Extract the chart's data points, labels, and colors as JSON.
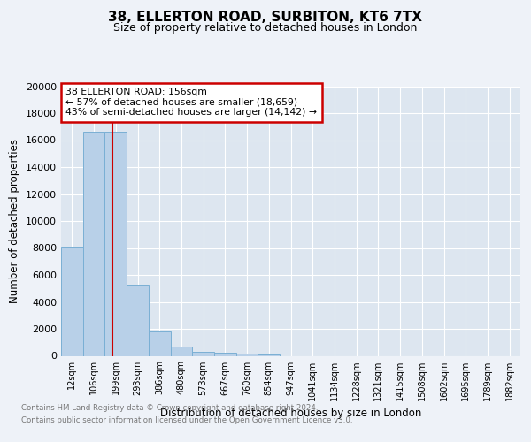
{
  "title": "38, ELLERTON ROAD, SURBITON, KT6 7TX",
  "subtitle": "Size of property relative to detached houses in London",
  "xlabel": "Distribution of detached houses by size in London",
  "ylabel": "Number of detached properties",
  "categories": [
    "12sqm",
    "106sqm",
    "199sqm",
    "293sqm",
    "386sqm",
    "480sqm",
    "573sqm",
    "667sqm",
    "760sqm",
    "854sqm",
    "947sqm",
    "1041sqm",
    "1134sqm",
    "1228sqm",
    "1321sqm",
    "1415sqm",
    "1508sqm",
    "1602sqm",
    "1695sqm",
    "1789sqm",
    "1882sqm"
  ],
  "values": [
    8100,
    16600,
    16600,
    5300,
    1800,
    700,
    300,
    200,
    150,
    100,
    0,
    0,
    0,
    0,
    0,
    0,
    0,
    0,
    0,
    0,
    0
  ],
  "bar_color": "#b8d0e8",
  "bar_edge_color": "#7aafd4",
  "vline_x": 1.85,
  "vline_color": "#cc0000",
  "annotation_title": "38 ELLERTON ROAD: 156sqm",
  "annotation_line1": "← 57% of detached houses are smaller (18,659)",
  "annotation_line2": "43% of semi-detached houses are larger (14,142) →",
  "annotation_box_color": "#ffffff",
  "annotation_box_edge": "#cc0000",
  "ylim": [
    0,
    20000
  ],
  "yticks": [
    0,
    2000,
    4000,
    6000,
    8000,
    10000,
    12000,
    14000,
    16000,
    18000,
    20000
  ],
  "footer_line1": "Contains HM Land Registry data © Crown copyright and database right 2024.",
  "footer_line2": "Contains public sector information licensed under the Open Government Licence v3.0.",
  "bg_color": "#eef2f8",
  "plot_bg_color": "#dde6f0"
}
